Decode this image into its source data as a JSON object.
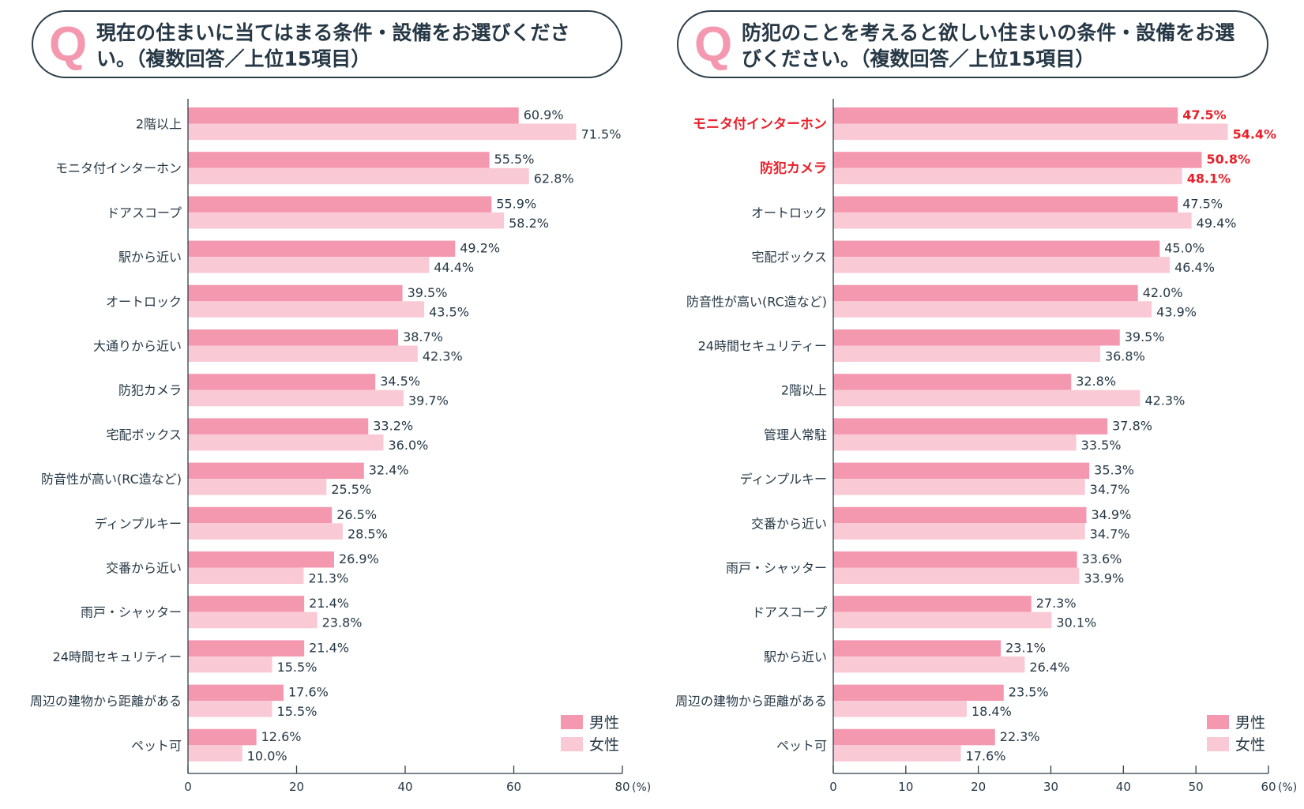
{
  "colors": {
    "male": "#f498b0",
    "female": "#f9cad5",
    "text": "#263845",
    "highlight": "#e8202a",
    "q_mark": "#f498b0"
  },
  "legend": {
    "male": "男性",
    "female": "女性",
    "position": "bottom-right"
  },
  "chart_data": [
    {
      "type": "bar",
      "orientation": "horizontal",
      "q_mark": "Q",
      "title": "現在の住まいに当てはまる条件・設備をお選びください。（複数回答／上位15項目）",
      "xlim": [
        0,
        80
      ],
      "xticks": [
        0,
        20,
        40,
        60,
        80
      ],
      "xunit": "(%)",
      "categories": [
        "2階以上",
        "モニタ付インターホン",
        "ドアスコープ",
        "駅から近い",
        "オートロック",
        "大通りから近い",
        "防犯カメラ",
        "宅配ボックス",
        "防音性が高い(RC造など)",
        "ディンプルキー",
        "交番から近い",
        "雨戸・シャッター",
        "24時間セキュリティー",
        "周辺の建物から距離がある",
        "ペット可"
      ],
      "highlighted": [],
      "series": [
        {
          "name": "男性",
          "values": [
            60.9,
            55.5,
            55.9,
            49.2,
            39.5,
            38.7,
            34.5,
            33.2,
            32.4,
            26.5,
            26.9,
            21.4,
            21.4,
            17.6,
            12.6
          ]
        },
        {
          "name": "女性",
          "values": [
            71.5,
            62.8,
            58.2,
            44.4,
            43.5,
            42.3,
            39.7,
            36.0,
            25.5,
            28.5,
            21.3,
            23.8,
            15.5,
            15.5,
            10.0
          ]
        }
      ]
    },
    {
      "type": "bar",
      "orientation": "horizontal",
      "q_mark": "Q",
      "title": "防犯のことを考えると欲しい住まいの条件・設備をお選びください。（複数回答／上位15項目）",
      "xlim": [
        0,
        60
      ],
      "xticks": [
        0,
        10,
        20,
        30,
        40,
        50,
        60
      ],
      "xunit": "(%)",
      "categories": [
        "モニタ付インターホン",
        "防犯カメラ",
        "オートロック",
        "宅配ボックス",
        "防音性が高い(RC造など)",
        "24時間セキュリティー",
        "2階以上",
        "管理人常駐",
        "ディンプルキー",
        "交番から近い",
        "雨戸・シャッター",
        "ドアスコープ",
        "駅から近い",
        "周辺の建物から距離がある",
        "ペット可"
      ],
      "highlighted": [
        "モニタ付インターホン",
        "防犯カメラ"
      ],
      "series": [
        {
          "name": "男性",
          "values": [
            47.5,
            50.8,
            47.5,
            45.0,
            42.0,
            39.5,
            32.8,
            37.8,
            35.3,
            34.9,
            33.6,
            27.3,
            23.1,
            23.5,
            22.3
          ]
        },
        {
          "name": "女性",
          "values": [
            54.4,
            48.1,
            49.4,
            46.4,
            43.9,
            36.8,
            42.3,
            33.5,
            34.7,
            34.7,
            33.9,
            30.1,
            26.4,
            18.4,
            17.6
          ]
        }
      ]
    }
  ]
}
